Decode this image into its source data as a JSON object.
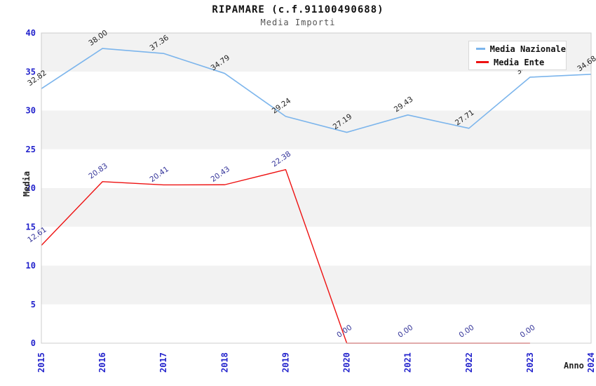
{
  "title": "RIPAMARE (c.f.91100490688)",
  "subtitle": "Media Importi",
  "legend": {
    "items": [
      {
        "label": "Media Nazionale",
        "color": "#7cb5ec"
      },
      {
        "label": "Media Ente",
        "color": "#ee1111"
      }
    ]
  },
  "axes": {
    "y_title": "Media",
    "x_title": "Anno",
    "tick_color": "#2222cc",
    "band_color": "#f2f2f2",
    "border_color": "#cccccc"
  },
  "chart_data": {
    "type": "line",
    "title": "RIPAMARE (c.f.91100490688)",
    "subtitle": "Media Importi",
    "xlabel": "Anno",
    "ylabel": "Media",
    "x": [
      "2015",
      "2016",
      "2017",
      "2018",
      "2019",
      "2020",
      "2021",
      "2022",
      "2023",
      "2024"
    ],
    "ylim": [
      0,
      40
    ],
    "y_ticks": [
      0,
      5,
      10,
      15,
      20,
      25,
      30,
      35,
      40
    ],
    "grid_bands": true,
    "legend_position": "top-right",
    "series": [
      {
        "name": "Media Nazionale",
        "color": "#7cb5ec",
        "label_color": "#222222",
        "values": [
          32.82,
          38.0,
          37.36,
          34.79,
          29.24,
          27.19,
          29.43,
          27.71,
          34.3,
          34.68
        ],
        "labels": [
          "32.82",
          "38.00",
          "37.36",
          "34.79",
          "29.24",
          "27.19",
          "29.43",
          "27.71",
          "34.30",
          "34.68"
        ]
      },
      {
        "name": "Media Ente",
        "color": "#ee1111",
        "label_color": "#333399",
        "values": [
          12.61,
          20.83,
          20.41,
          20.43,
          22.38,
          0,
          0,
          0,
          0,
          null
        ],
        "labels": [
          "12.61",
          "20.83",
          "20.41",
          "20.43",
          "22.38",
          "0.00",
          "0.00",
          "0.00",
          "0.00",
          null
        ]
      }
    ]
  }
}
